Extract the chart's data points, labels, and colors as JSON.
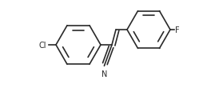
{
  "bg_color": "#ffffff",
  "line_color": "#2a2a2a",
  "line_width": 1.2,
  "font_size": 7.0,
  "figsize": [
    2.54,
    1.16
  ],
  "dpi": 100,
  "cl_label": "Cl",
  "f_label": "F",
  "n_label": "N"
}
